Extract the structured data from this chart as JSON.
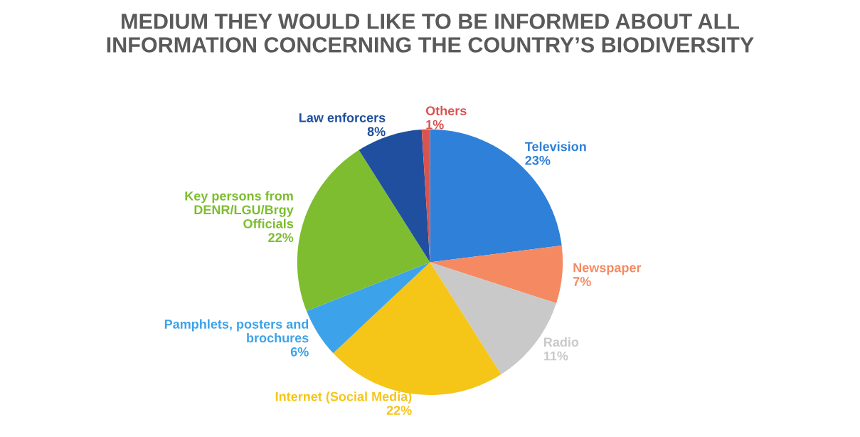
{
  "chart_data": {
    "type": "pie",
    "title": "MEDIUM THEY WOULD LIKE TO BE INFORMED ABOUT ALL\nINFORMATION CONCERNING THE COUNTRY’S BIODIVERSITY",
    "categories": [
      "Television",
      "Newspaper",
      "Radio",
      "Internet (Social Media)",
      "Pamphlets, posters and\nbrochures",
      "Key persons from\nDENR/LGU/Brgy\nOfficials",
      "Law enforcers",
      "Others"
    ],
    "values": [
      23,
      7,
      11,
      22,
      6,
      22,
      8,
      1
    ],
    "value_labels": [
      "23%",
      "7%",
      "11%",
      "22%",
      "6%",
      "22%",
      "8%",
      "1%"
    ],
    "colors": [
      "#2f80d8",
      "#f58a62",
      "#c9c9c9",
      "#f5c518",
      "#3ca3ea",
      "#7dbd2f",
      "#1f4f9e",
      "#d9534f"
    ],
    "legend": false
  }
}
